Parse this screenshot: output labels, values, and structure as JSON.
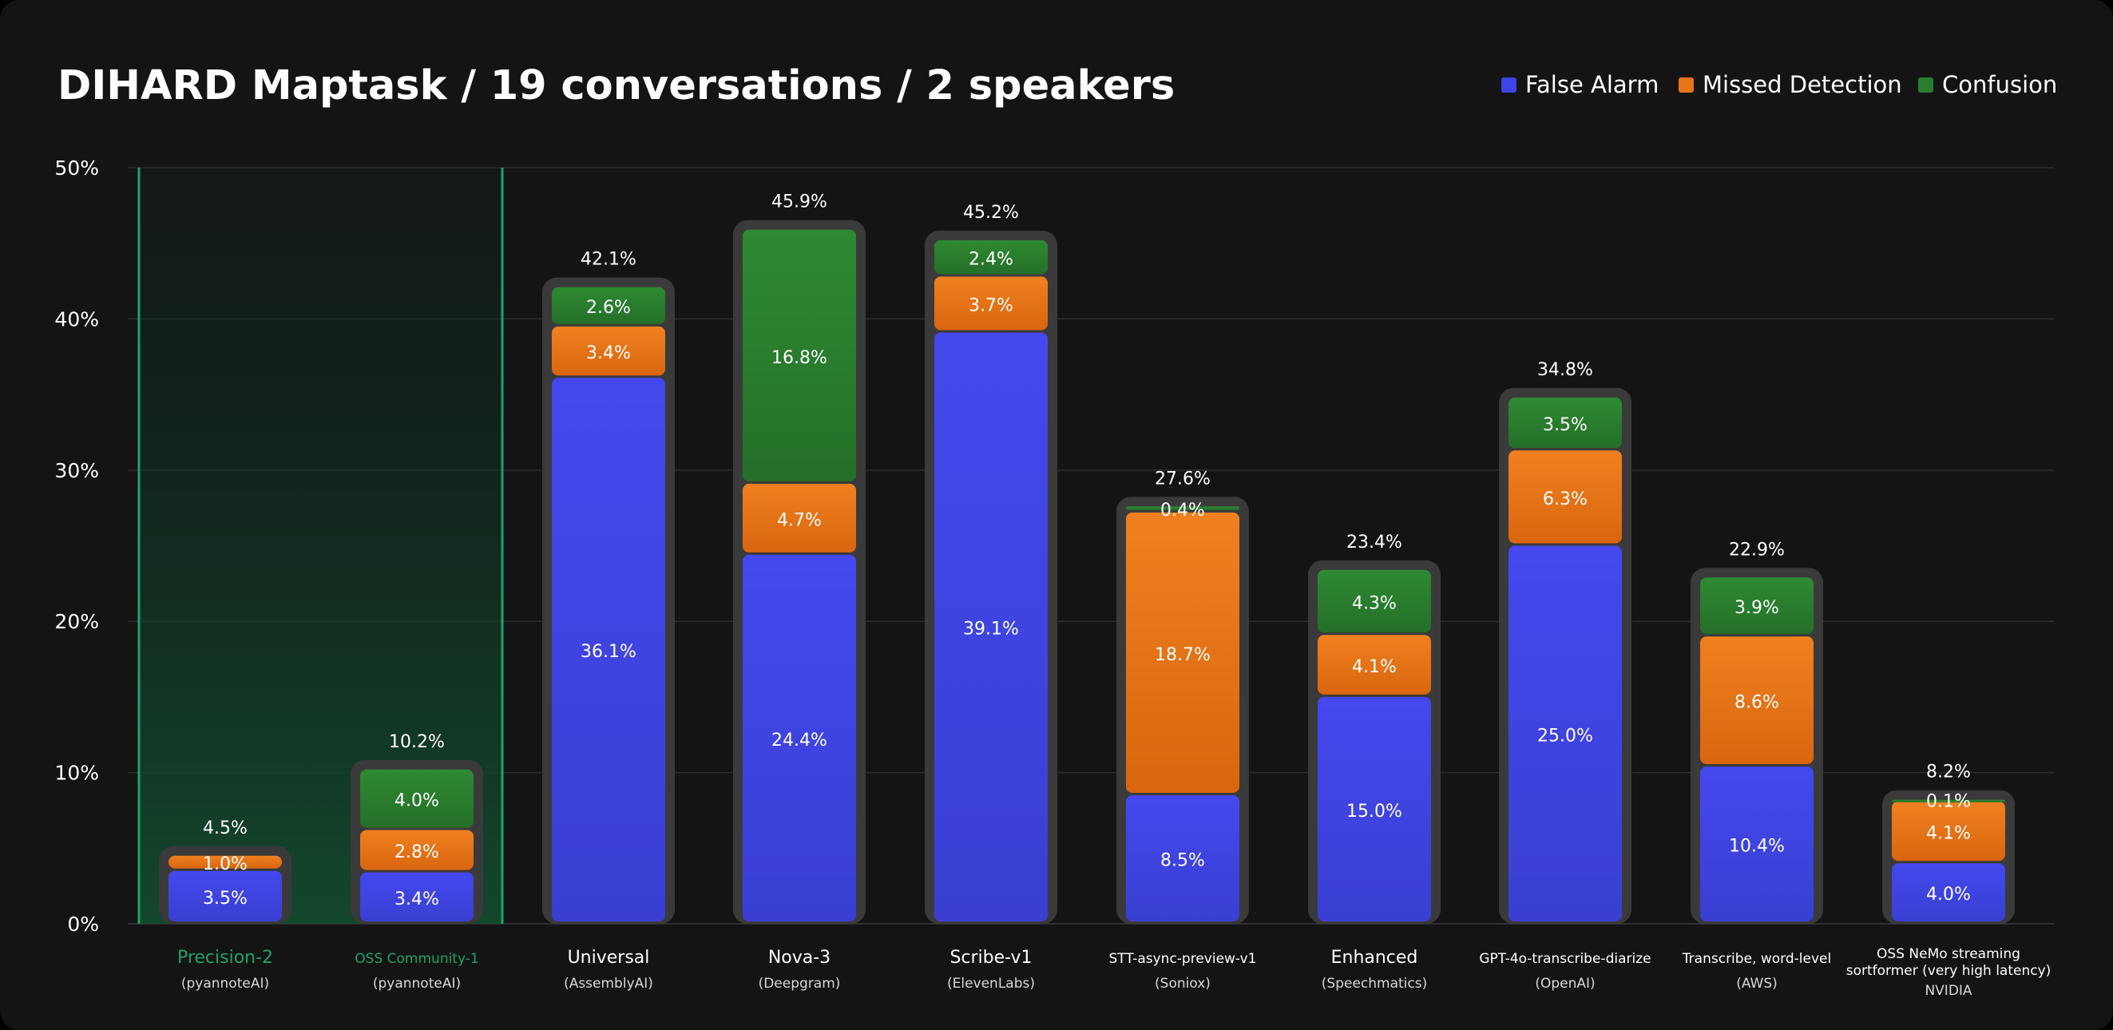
{
  "chart_data": {
    "type": "bar",
    "stacked": true,
    "title": "DIHARD Maptask / 19 conversations / 2 speakers",
    "xlabel": "",
    "ylabel": "",
    "ylim": [
      0,
      50
    ],
    "yticks": [
      "0%",
      "10%",
      "20%",
      "30%",
      "40%",
      "50%"
    ],
    "grid": true,
    "legend_position": "top-right",
    "legend": [
      "False Alarm",
      "Missed Detection",
      "Confusion"
    ],
    "colors": {
      "false_alarm": "#3f44e6",
      "missed_detection": "#e8741a",
      "confusion": "#2a7d2e",
      "highlight_line": "#1fa36b",
      "bar_outline": "#3a3a3a"
    },
    "highlighted_categories": [
      0,
      1
    ],
    "categories": [
      {
        "name": "Precision-2",
        "sub": "(pyannoteAI)"
      },
      {
        "name": "OSS Community-1",
        "sub": "(pyannoteAI)"
      },
      {
        "name": "Universal",
        "sub": "(AssemblyAI)"
      },
      {
        "name": "Nova-3",
        "sub": "(Deepgram)"
      },
      {
        "name": "Scribe-v1",
        "sub": "(ElevenLabs)"
      },
      {
        "name": "STT-async-preview-v1",
        "sub": "(Soniox)"
      },
      {
        "name": "Enhanced",
        "sub": "(Speechmatics)"
      },
      {
        "name": "GPT-4o-transcribe-diarize",
        "sub": "(OpenAI)"
      },
      {
        "name": "Transcribe, word-level",
        "sub": "(AWS)"
      },
      {
        "name": "OSS NeMo streaming",
        "name2": "sortformer (very high latency)",
        "sub": "NVIDIA"
      }
    ],
    "series": [
      {
        "name": "False Alarm",
        "values": [
          3.5,
          3.4,
          36.1,
          24.4,
          39.1,
          8.5,
          15.0,
          25.0,
          10.4,
          4.0
        ],
        "labels": [
          "3.5%",
          "3.4%",
          "36.1%",
          "24.4%",
          "39.1%",
          "8.5%",
          "15.0%",
          "25.0%",
          "10.4%",
          "4.0%"
        ]
      },
      {
        "name": "Missed Detection",
        "values": [
          1.0,
          2.8,
          3.4,
          4.7,
          3.7,
          18.7,
          4.1,
          6.3,
          8.6,
          4.1
        ],
        "labels": [
          "1.0%",
          "2.8%",
          "3.4%",
          "4.7%",
          "3.7%",
          "18.7%",
          "4.1%",
          "6.3%",
          "8.6%",
          "4.1%"
        ]
      },
      {
        "name": "Confusion",
        "values": [
          0.0,
          4.0,
          2.6,
          16.8,
          2.4,
          0.4,
          4.3,
          3.5,
          3.9,
          0.1
        ],
        "labels": [
          "",
          "4.0%",
          "2.6%",
          "16.8%",
          "2.4%",
          "0.4%",
          "4.3%",
          "3.5%",
          "3.9%",
          "0.1%"
        ]
      }
    ],
    "totals": [
      4.5,
      10.2,
      42.1,
      45.9,
      45.2,
      27.6,
      23.4,
      34.8,
      22.9,
      8.2
    ],
    "total_labels": [
      "4.5%",
      "10.2%",
      "42.1%",
      "45.9%",
      "45.2%",
      "27.6%",
      "23.4%",
      "34.8%",
      "22.9%",
      "8.2%"
    ]
  }
}
